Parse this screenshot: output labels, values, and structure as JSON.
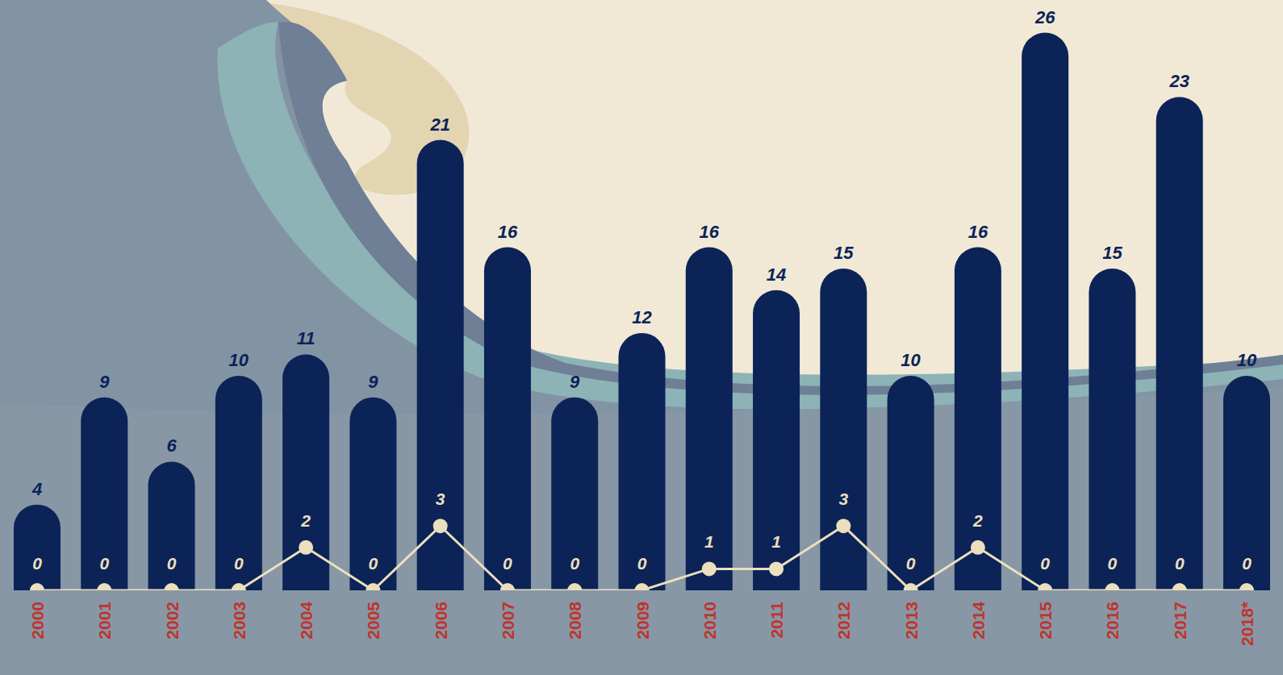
{
  "chart_data": {
    "type": "bar",
    "categories": [
      "2000",
      "2001",
      "2002",
      "2003",
      "2004",
      "2005",
      "2006",
      "2007",
      "2008",
      "2009",
      "2010",
      "2011",
      "2012",
      "2013",
      "2014",
      "2015",
      "2016",
      "2017",
      "2018*"
    ],
    "series": [
      {
        "type": "bar",
        "color": "#0b2357",
        "values": [
          4,
          9,
          6,
          10,
          11,
          9,
          21,
          16,
          9,
          12,
          16,
          14,
          15,
          10,
          16,
          26,
          15,
          23,
          10
        ]
      },
      {
        "type": "line",
        "color": "#ecdfbd",
        "marker": "circle",
        "values": [
          0,
          0,
          0,
          0,
          2,
          0,
          3,
          0,
          0,
          0,
          1,
          1,
          3,
          0,
          2,
          0,
          0,
          0,
          0
        ]
      }
    ],
    "ylim": [
      0,
      27
    ],
    "grid": false,
    "data_labels": true,
    "tick_labels": "x"
  }
}
